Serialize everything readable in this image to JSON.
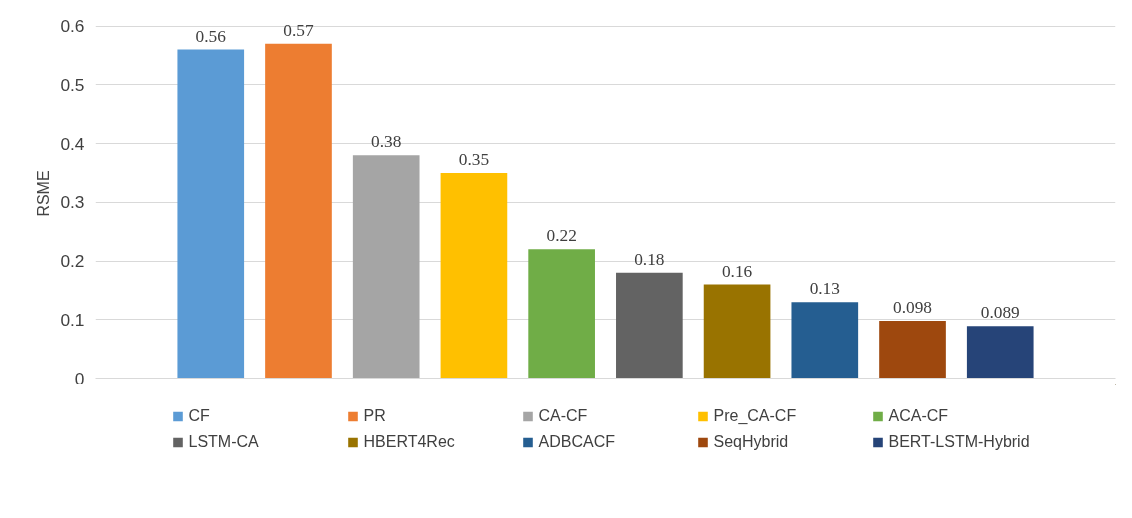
{
  "chart_data": {
    "type": "bar",
    "ylabel": "RSME",
    "categories": [
      null
    ],
    "series": [
      {
        "name": "CF",
        "color": "#5b9bd5",
        "values": [
          0.56
        ]
      },
      {
        "name": "PR",
        "color": "#ed7d31",
        "values": [
          0.57
        ]
      },
      {
        "name": "CA-CF",
        "color": "#a5a5a5",
        "values": [
          0.38
        ]
      },
      {
        "name": "Pre_CA-CF",
        "color": "#ffc000",
        "values": [
          0.35
        ]
      },
      {
        "name": "ACA-CF",
        "color": "#70ad47",
        "values": [
          0.22
        ]
      },
      {
        "name": "LSTM-CA",
        "color": "#636363",
        "values": [
          0.18
        ]
      },
      {
        "name": "HBERT4Rec",
        "color": "#997300",
        "values": [
          0.16
        ]
      },
      {
        "name": "ADBCACF",
        "color": "#255e91",
        "values": [
          0.13
        ]
      },
      {
        "name": "SeqHybrid",
        "color": "#9e480e",
        "values": [
          0.098
        ]
      },
      {
        "name": "BERT-LSTM-Hybrid",
        "color": "#264478",
        "values": [
          0.089
        ]
      }
    ],
    "ylim": [
      0,
      0.6
    ],
    "yticks": [
      0,
      0.1,
      0.2,
      0.3,
      0.4,
      0.5,
      0.6
    ],
    "grid": "y",
    "legend": "bottom",
    "data_labels": true
  }
}
